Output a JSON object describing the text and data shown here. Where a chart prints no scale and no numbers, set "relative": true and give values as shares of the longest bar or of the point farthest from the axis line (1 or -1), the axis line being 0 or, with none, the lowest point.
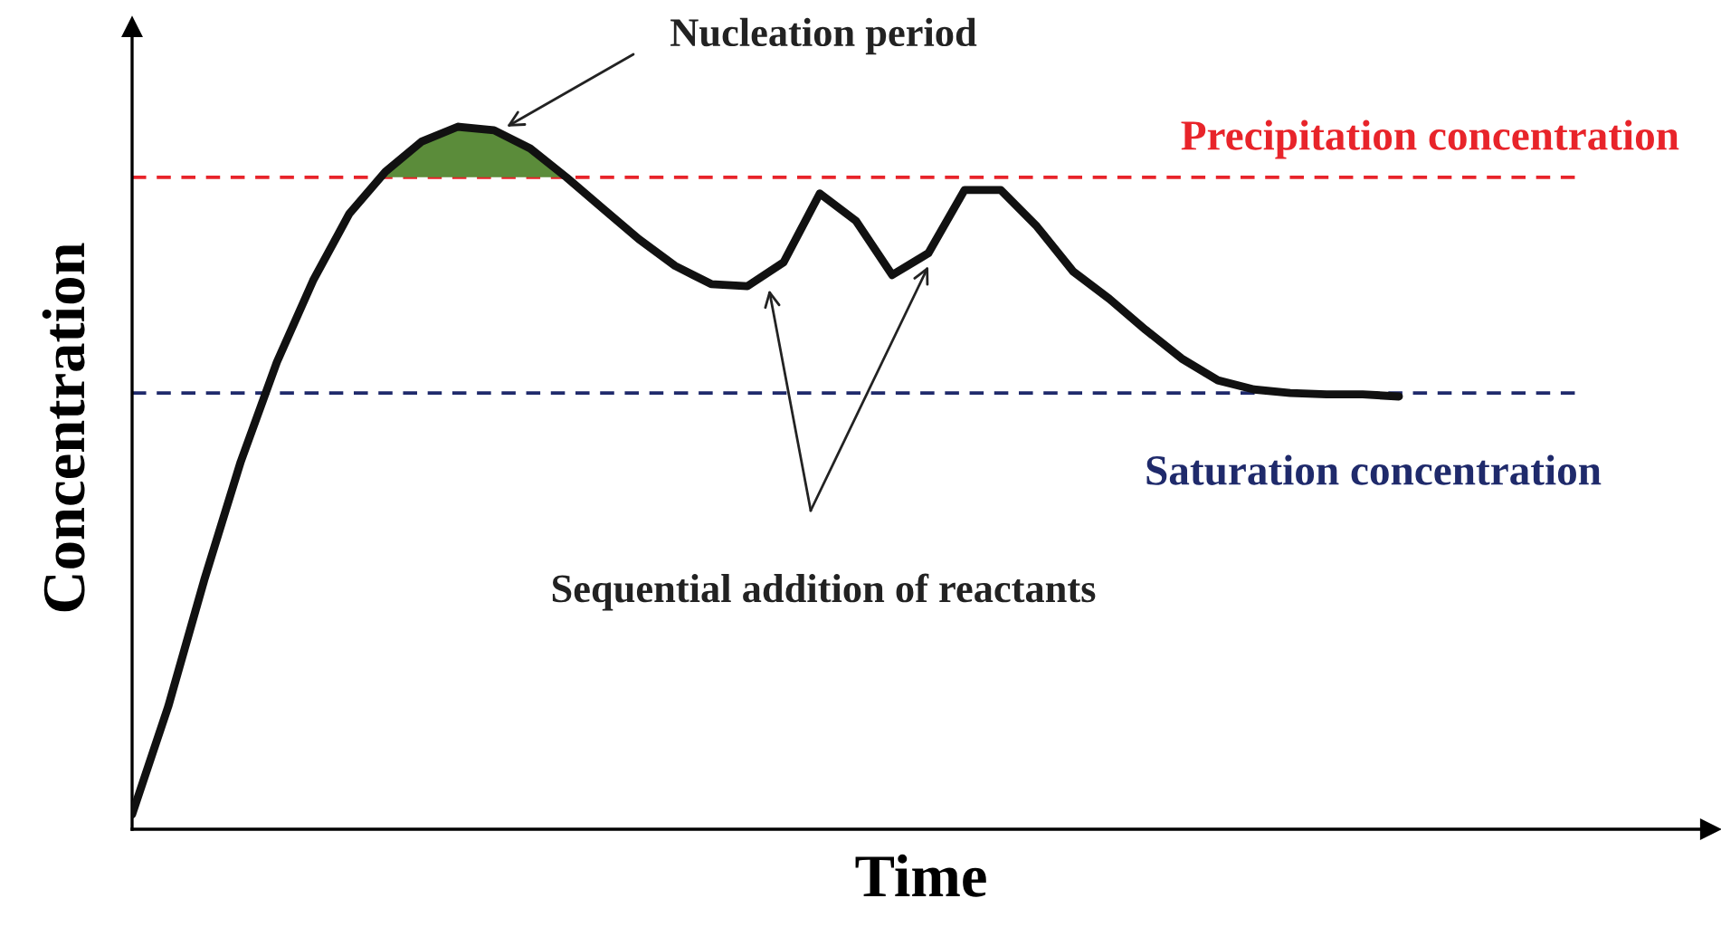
{
  "chart_data": {
    "type": "line",
    "relative": true,
    "xlabel": "Time",
    "ylabel": "Concentration",
    "legend": false,
    "marker": "none",
    "line_style": "solid",
    "categories": [
      null,
      null,
      null,
      null,
      null,
      null,
      null,
      null,
      null,
      null,
      null,
      null,
      null,
      null,
      null,
      null,
      null,
      null,
      null,
      null,
      null,
      null,
      null,
      null,
      null,
      null,
      null,
      null,
      null,
      null,
      null,
      null,
      null,
      null,
      null,
      null
    ],
    "series": [
      {
        "color": "#111111",
        "values": [
          0.021,
          0.175,
          0.356,
          0.523,
          0.665,
          0.781,
          0.876,
          0.936,
          0.979,
          1.0,
          0.995,
          0.969,
          0.928,
          0.884,
          0.84,
          0.802,
          0.776,
          0.773,
          0.807,
          0.905,
          0.866,
          0.789,
          0.82,
          0.91,
          0.91,
          0.858,
          0.794,
          0.755,
          0.711,
          0.67,
          0.639,
          0.626,
          0.621,
          0.619,
          0.619,
          0.616
        ]
      }
    ],
    "ref_lines": [
      {
        "axis": "y",
        "value": 0.928,
        "label": "Precipitation concentration",
        "color": "#e8242a",
        "line_style": "dashed"
      },
      {
        "axis": "y",
        "value": 0.621,
        "label": "Saturation concentration",
        "color": "#1f2a6b",
        "line_style": "dashed"
      }
    ],
    "annotations": [
      "Nucleation period",
      "Sequential addition of reactants"
    ]
  }
}
